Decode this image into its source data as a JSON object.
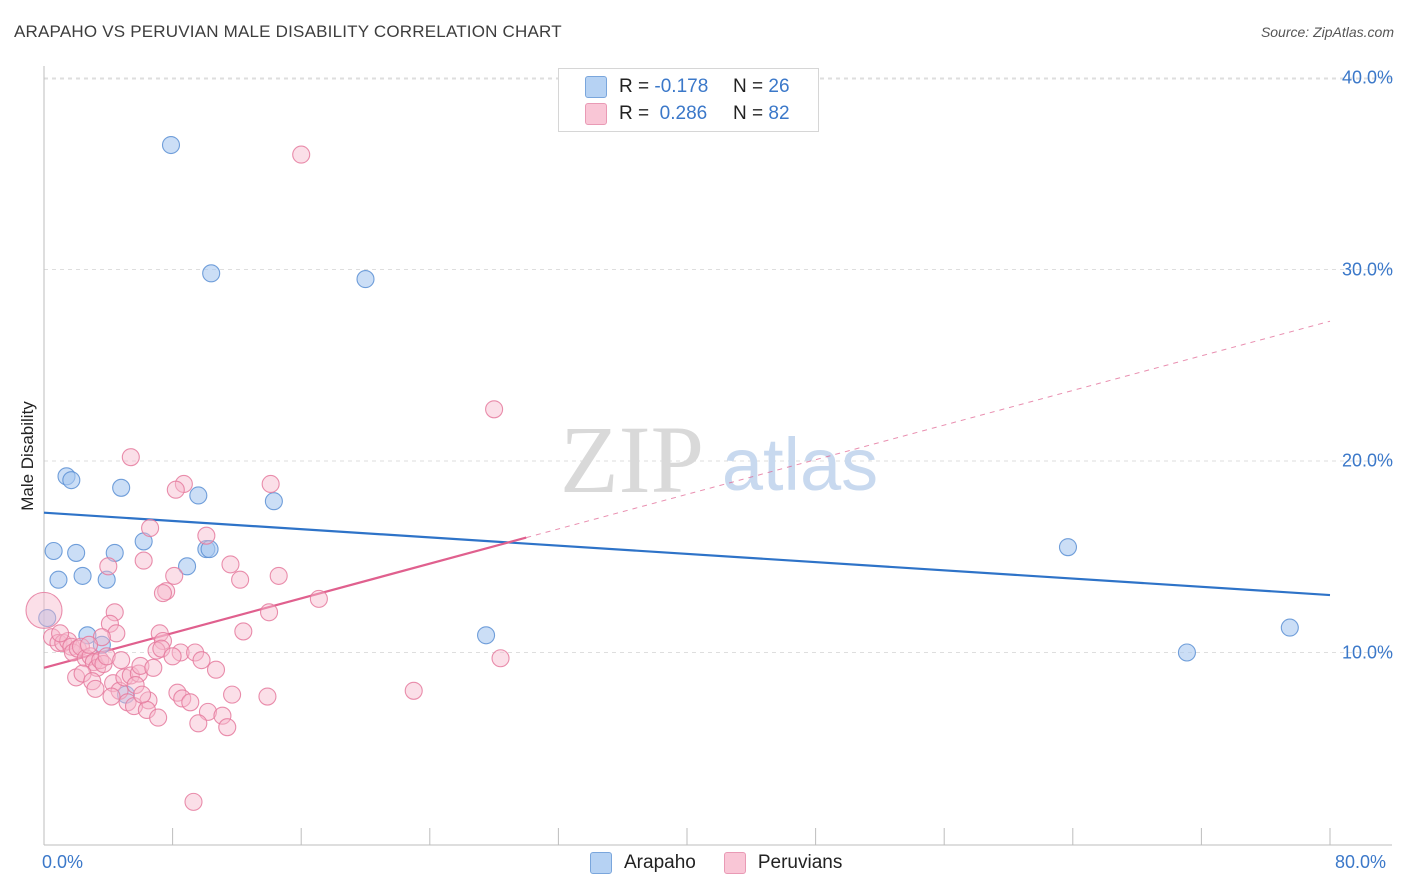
{
  "header": {
    "title": "ARAPAHO VS PERUVIAN MALE DISABILITY CORRELATION CHART",
    "source": "Source: ZipAtlas.com"
  },
  "watermark": {
    "zip": "ZIP",
    "atlas": "atlas"
  },
  "legend": {
    "arapaho": {
      "r_label": "R =",
      "r_value": "-0.178",
      "n_label": "N =",
      "n_value": "26"
    },
    "peruvians": {
      "r_label": "R =",
      "r_value": "0.286",
      "n_label": "N =",
      "n_value": "82"
    }
  },
  "colors": {
    "arapaho_fill": "#a8c8f0",
    "arapaho_stroke": "#5b8fd4",
    "arapaho_line": "#2e73c8",
    "peruvians_fill": "#f7b8cc",
    "peruvians_stroke": "#e57a9e",
    "peruvians_line": "#e0608e",
    "tick_text": "#3b78c9"
  },
  "chart_data": {
    "type": "scatter",
    "title": "ARAPAHO VS PERUVIAN MALE DISABILITY CORRELATION CHART",
    "ylabel": "Male Disability",
    "xlabel": "",
    "xlim": [
      0,
      80
    ],
    "ylim": [
      0,
      40
    ],
    "x_tick_labels": [
      "0.0%",
      "80.0%"
    ],
    "y_ticks": [
      {
        "value": 10,
        "label": "10.0%"
      },
      {
        "value": 20,
        "label": "20.0%"
      },
      {
        "value": 30,
        "label": "30.0%"
      },
      {
        "value": 40,
        "label": "40.0%"
      }
    ],
    "grid": true,
    "series": [
      {
        "name": "Arapaho",
        "r": -0.178,
        "n": 26,
        "trend": {
          "x": [
            0,
            80
          ],
          "y": [
            17.3,
            13.0
          ]
        },
        "points": [
          [
            7.9,
            36.5
          ],
          [
            10.4,
            29.8
          ],
          [
            20.0,
            29.5
          ],
          [
            1.4,
            19.2
          ],
          [
            1.7,
            19.0
          ],
          [
            4.8,
            18.6
          ],
          [
            9.6,
            18.2
          ],
          [
            14.3,
            17.9
          ],
          [
            0.6,
            15.3
          ],
          [
            2.0,
            15.2
          ],
          [
            4.4,
            15.2
          ],
          [
            6.2,
            15.8
          ],
          [
            10.1,
            15.4
          ],
          [
            10.3,
            15.4
          ],
          [
            8.9,
            14.5
          ],
          [
            2.4,
            14.0
          ],
          [
            0.9,
            13.8
          ],
          [
            3.9,
            13.8
          ],
          [
            0.2,
            11.8
          ],
          [
            2.7,
            10.9
          ],
          [
            3.6,
            10.4
          ],
          [
            27.5,
            10.9
          ],
          [
            63.7,
            15.5
          ],
          [
            71.1,
            10.0
          ],
          [
            77.5,
            11.3
          ],
          [
            5.1,
            7.8
          ]
        ]
      },
      {
        "name": "Peruvians",
        "r": 0.286,
        "n": 82,
        "trend": {
          "x": [
            0,
            30
          ],
          "y": [
            9.2,
            16.0
          ],
          "dashed_to": {
            "x": 80,
            "y": 27.3
          }
        },
        "points": [
          [
            16.0,
            36.0
          ],
          [
            28.0,
            22.7
          ],
          [
            5.4,
            20.2
          ],
          [
            8.7,
            18.8
          ],
          [
            14.1,
            18.8
          ],
          [
            8.2,
            18.5
          ],
          [
            6.6,
            16.5
          ],
          [
            10.1,
            16.1
          ],
          [
            6.2,
            14.8
          ],
          [
            11.6,
            14.6
          ],
          [
            4.0,
            14.5
          ],
          [
            8.1,
            14.0
          ],
          [
            12.2,
            13.8
          ],
          [
            7.6,
            13.2
          ],
          [
            7.4,
            13.1
          ],
          [
            17.1,
            12.8
          ],
          [
            4.4,
            12.1
          ],
          [
            14.0,
            12.1
          ],
          [
            4.1,
            11.5
          ],
          [
            12.4,
            11.1
          ],
          [
            4.5,
            11.0
          ],
          [
            7.2,
            11.0
          ],
          [
            7.4,
            10.6
          ],
          [
            0.0,
            12.2
          ],
          [
            0.5,
            10.8
          ],
          [
            0.9,
            10.5
          ],
          [
            1.2,
            10.5
          ],
          [
            1.5,
            10.6
          ],
          [
            1.7,
            10.3
          ],
          [
            1.8,
            10.0
          ],
          [
            2.1,
            10.2
          ],
          [
            2.3,
            10.3
          ],
          [
            2.6,
            9.7
          ],
          [
            2.9,
            9.8
          ],
          [
            3.1,
            9.5
          ],
          [
            3.3,
            9.2
          ],
          [
            3.5,
            9.6
          ],
          [
            3.7,
            9.4
          ],
          [
            3.9,
            9.8
          ],
          [
            2.0,
            8.7
          ],
          [
            2.4,
            8.9
          ],
          [
            3.0,
            8.5
          ],
          [
            3.2,
            8.1
          ],
          [
            4.3,
            8.4
          ],
          [
            4.7,
            8.0
          ],
          [
            5.0,
            8.7
          ],
          [
            5.4,
            8.8
          ],
          [
            5.9,
            8.9
          ],
          [
            6.0,
            9.3
          ],
          [
            6.8,
            9.2
          ],
          [
            7.0,
            10.1
          ],
          [
            7.3,
            10.2
          ],
          [
            8.5,
            10.0
          ],
          [
            9.4,
            10.0
          ],
          [
            9.8,
            9.6
          ],
          [
            10.7,
            9.1
          ],
          [
            11.7,
            7.8
          ],
          [
            13.9,
            7.7
          ],
          [
            8.3,
            7.9
          ],
          [
            8.6,
            7.6
          ],
          [
            6.5,
            7.5
          ],
          [
            5.2,
            7.4
          ],
          [
            5.6,
            7.2
          ],
          [
            6.4,
            7.0
          ],
          [
            4.2,
            7.7
          ],
          [
            9.1,
            7.4
          ],
          [
            10.2,
            6.9
          ],
          [
            11.1,
            6.7
          ],
          [
            9.6,
            6.3
          ],
          [
            11.4,
            6.1
          ],
          [
            5.7,
            8.3
          ],
          [
            4.8,
            9.6
          ],
          [
            6.1,
            7.8
          ],
          [
            7.1,
            6.6
          ],
          [
            3.6,
            10.8
          ],
          [
            2.8,
            10.4
          ],
          [
            1.0,
            11.0
          ],
          [
            23.0,
            8.0
          ],
          [
            28.4,
            9.7
          ],
          [
            14.6,
            14.0
          ],
          [
            9.3,
            2.2
          ],
          [
            8.0,
            9.8
          ]
        ]
      }
    ]
  }
}
